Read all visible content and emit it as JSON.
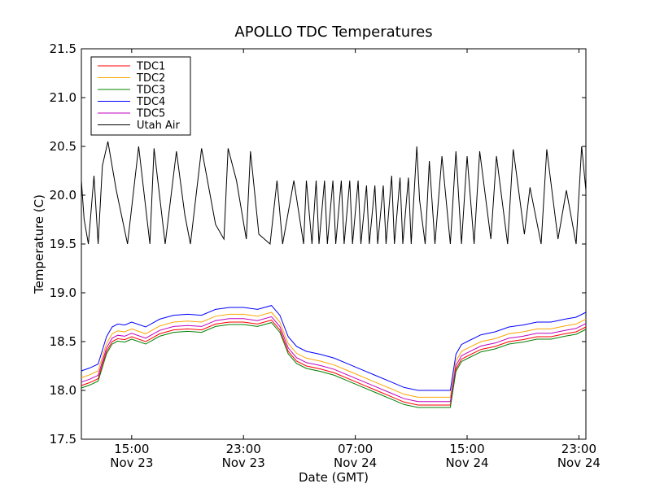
{
  "chart_data": {
    "type": "line",
    "title": "APOLLO TDC Temperatures",
    "xlabel": "Date (GMT)",
    "ylabel": "Temperature (C)",
    "xlim": [
      11.4,
      47.5
    ],
    "ylim": [
      17.5,
      21.5
    ],
    "x_unit": "hours since Nov 23 00:00 GMT",
    "grid": false,
    "legend_position": "top-left",
    "yticks": [
      {
        "value": 17.5,
        "label": "17.5"
      },
      {
        "value": 18.0,
        "label": "18.0"
      },
      {
        "value": 18.5,
        "label": "18.5"
      },
      {
        "value": 19.0,
        "label": "19.0"
      },
      {
        "value": 19.5,
        "label": "19.5"
      },
      {
        "value": 20.0,
        "label": "20.0"
      },
      {
        "value": 20.5,
        "label": "20.5"
      },
      {
        "value": 21.0,
        "label": "21.0"
      },
      {
        "value": 21.5,
        "label": "21.5"
      }
    ],
    "xticks": [
      {
        "value": 15,
        "time": "15:00",
        "date": "Nov 23"
      },
      {
        "value": 23,
        "time": "23:00",
        "date": "Nov 23"
      },
      {
        "value": 31,
        "time": "07:00",
        "date": "Nov 24"
      },
      {
        "value": 39,
        "time": "15:00",
        "date": "Nov 24"
      },
      {
        "value": 47,
        "time": "23:00",
        "date": "Nov 24"
      }
    ],
    "series": [
      {
        "name": "TDC1",
        "color": "#ff0000",
        "offset": 0.0,
        "x": [
          11.4,
          12.0,
          12.6,
          13.2,
          13.6,
          14.0,
          14.5,
          15.0,
          16.0,
          17.0,
          18.0,
          19.0,
          20.0,
          21.0,
          22.0,
          23.0,
          24.0,
          25.0,
          25.6,
          26.2,
          26.8,
          27.5,
          28.5,
          29.5,
          30.5,
          31.5,
          32.5,
          33.5,
          34.5,
          35.5,
          36.5,
          37.2,
          37.8,
          38.2,
          38.6,
          39.0,
          40.0,
          41.0,
          42.0,
          43.0,
          44.0,
          45.0,
          46.0,
          46.8,
          47.5
        ],
        "values": [
          18.05,
          18.08,
          18.12,
          18.4,
          18.5,
          18.53,
          18.52,
          18.55,
          18.5,
          18.58,
          18.62,
          18.63,
          18.62,
          18.68,
          18.7,
          18.7,
          18.68,
          18.72,
          18.62,
          18.4,
          18.3,
          18.25,
          18.22,
          18.18,
          18.12,
          18.06,
          18.0,
          17.94,
          17.88,
          17.85,
          17.85,
          17.85,
          17.85,
          18.22,
          18.32,
          18.35,
          18.42,
          18.45,
          18.5,
          18.52,
          18.55,
          18.55,
          18.58,
          18.6,
          18.65
        ]
      },
      {
        "name": "TDC2",
        "color": "#ffa500",
        "offset": 0.08,
        "x": [
          11.4,
          12.0,
          12.6,
          13.2,
          13.6,
          14.0,
          14.5,
          15.0,
          16.0,
          17.0,
          18.0,
          19.0,
          20.0,
          21.0,
          22.0,
          23.0,
          24.0,
          25.0,
          25.6,
          26.2,
          26.8,
          27.5,
          28.5,
          29.5,
          30.5,
          31.5,
          32.5,
          33.5,
          34.5,
          35.5,
          36.5,
          37.2,
          37.8,
          38.2,
          38.6,
          39.0,
          40.0,
          41.0,
          42.0,
          43.0,
          44.0,
          45.0,
          46.0,
          46.8,
          47.5
        ],
        "values": [
          18.05,
          18.08,
          18.12,
          18.4,
          18.5,
          18.53,
          18.52,
          18.55,
          18.5,
          18.58,
          18.62,
          18.63,
          18.62,
          18.68,
          18.7,
          18.7,
          18.68,
          18.72,
          18.62,
          18.4,
          18.3,
          18.25,
          18.22,
          18.18,
          18.12,
          18.06,
          18.0,
          17.94,
          17.88,
          17.85,
          17.85,
          17.85,
          17.85,
          18.22,
          18.32,
          18.35,
          18.42,
          18.45,
          18.5,
          18.52,
          18.55,
          18.55,
          18.58,
          18.6,
          18.65
        ]
      },
      {
        "name": "TDC3",
        "color": "#008000",
        "offset": -0.025,
        "x": [
          11.4,
          12.0,
          12.6,
          13.2,
          13.6,
          14.0,
          14.5,
          15.0,
          16.0,
          17.0,
          18.0,
          19.0,
          20.0,
          21.0,
          22.0,
          23.0,
          24.0,
          25.0,
          25.6,
          26.2,
          26.8,
          27.5,
          28.5,
          29.5,
          30.5,
          31.5,
          32.5,
          33.5,
          34.5,
          35.5,
          36.5,
          37.2,
          37.8,
          38.2,
          38.6,
          39.0,
          40.0,
          41.0,
          42.0,
          43.0,
          44.0,
          45.0,
          46.0,
          46.8,
          47.5
        ],
        "values": [
          18.05,
          18.08,
          18.12,
          18.4,
          18.5,
          18.53,
          18.52,
          18.55,
          18.5,
          18.58,
          18.62,
          18.63,
          18.62,
          18.68,
          18.7,
          18.7,
          18.68,
          18.72,
          18.62,
          18.4,
          18.3,
          18.25,
          18.22,
          18.18,
          18.12,
          18.06,
          18.0,
          17.94,
          17.88,
          17.85,
          17.85,
          17.85,
          17.85,
          18.22,
          18.32,
          18.35,
          18.42,
          18.45,
          18.5,
          18.52,
          18.55,
          18.55,
          18.58,
          18.6,
          18.65
        ]
      },
      {
        "name": "TDC4",
        "color": "#0000ff",
        "offset": 0.15,
        "x": [
          11.4,
          12.0,
          12.6,
          13.2,
          13.6,
          14.0,
          14.5,
          15.0,
          16.0,
          17.0,
          18.0,
          19.0,
          20.0,
          21.0,
          22.0,
          23.0,
          24.0,
          25.0,
          25.6,
          26.2,
          26.8,
          27.5,
          28.5,
          29.5,
          30.5,
          31.5,
          32.5,
          33.5,
          34.5,
          35.5,
          36.5,
          37.2,
          37.8,
          38.2,
          38.6,
          39.0,
          40.0,
          41.0,
          42.0,
          43.0,
          44.0,
          45.0,
          46.0,
          46.8,
          47.5
        ],
        "values": [
          18.05,
          18.08,
          18.12,
          18.4,
          18.5,
          18.53,
          18.52,
          18.55,
          18.5,
          18.58,
          18.62,
          18.63,
          18.62,
          18.68,
          18.7,
          18.7,
          18.68,
          18.72,
          18.62,
          18.4,
          18.3,
          18.25,
          18.22,
          18.18,
          18.12,
          18.06,
          18.0,
          17.94,
          17.88,
          17.85,
          17.85,
          17.85,
          17.85,
          18.22,
          18.32,
          18.35,
          18.42,
          18.45,
          18.5,
          18.52,
          18.55,
          18.55,
          18.58,
          18.6,
          18.65
        ]
      },
      {
        "name": "TDC5",
        "color": "#bf00bf",
        "offset": 0.035,
        "x": [
          11.4,
          12.0,
          12.6,
          13.2,
          13.6,
          14.0,
          14.5,
          15.0,
          16.0,
          17.0,
          18.0,
          19.0,
          20.0,
          21.0,
          22.0,
          23.0,
          24.0,
          25.0,
          25.6,
          26.2,
          26.8,
          27.5,
          28.5,
          29.5,
          30.5,
          31.5,
          32.5,
          33.5,
          34.5,
          35.5,
          36.5,
          37.2,
          37.8,
          38.2,
          38.6,
          39.0,
          40.0,
          41.0,
          42.0,
          43.0,
          44.0,
          45.0,
          46.0,
          46.8,
          47.5
        ],
        "values": [
          18.05,
          18.08,
          18.12,
          18.4,
          18.5,
          18.53,
          18.52,
          18.55,
          18.5,
          18.58,
          18.62,
          18.63,
          18.62,
          18.68,
          18.7,
          18.7,
          18.68,
          18.72,
          18.62,
          18.4,
          18.3,
          18.25,
          18.22,
          18.18,
          18.12,
          18.06,
          18.0,
          17.94,
          17.88,
          17.85,
          17.85,
          17.85,
          17.85,
          18.22,
          18.32,
          18.35,
          18.42,
          18.45,
          18.5,
          18.52,
          18.55,
          18.55,
          18.58,
          18.6,
          18.65
        ]
      },
      {
        "name": "Utah Air",
        "color": "#000000",
        "offset": 0.0,
        "x": [
          11.4,
          11.6,
          11.9,
          12.3,
          12.6,
          12.9,
          13.3,
          13.9,
          14.7,
          15.5,
          16.3,
          16.6,
          17.4,
          18.2,
          18.8,
          19.2,
          20.0,
          21.0,
          21.6,
          21.9,
          22.5,
          23.2,
          23.5,
          24.1,
          24.9,
          25.4,
          25.8,
          26.6,
          27.3,
          27.5,
          27.9,
          28.2,
          28.4,
          28.8,
          29.0,
          29.4,
          29.6,
          30.0,
          30.2,
          30.6,
          30.8,
          31.2,
          31.4,
          31.8,
          32.0,
          32.4,
          32.6,
          33.0,
          33.2,
          33.6,
          33.8,
          34.2,
          34.4,
          34.8,
          35.0,
          35.4,
          35.6,
          36.0,
          36.3,
          36.7,
          37.2,
          37.8,
          38.2,
          38.6,
          39.0,
          39.5,
          39.9,
          40.7,
          41.1,
          41.9,
          42.3,
          43.1,
          43.5,
          44.3,
          44.7,
          45.5,
          46.1,
          46.8,
          47.2,
          47.5
        ],
        "values": [
          20.15,
          19.75,
          19.5,
          20.2,
          19.5,
          20.3,
          20.55,
          20.05,
          19.5,
          20.5,
          19.5,
          20.48,
          19.5,
          20.45,
          19.8,
          19.5,
          20.48,
          19.7,
          19.55,
          20.48,
          20.15,
          19.55,
          20.45,
          19.6,
          19.5,
          20.15,
          19.5,
          20.15,
          19.5,
          20.15,
          19.5,
          20.15,
          19.5,
          20.15,
          19.5,
          20.15,
          19.5,
          20.15,
          19.5,
          20.15,
          19.5,
          20.15,
          19.5,
          20.1,
          19.5,
          20.1,
          19.5,
          20.1,
          19.5,
          20.2,
          19.5,
          20.18,
          19.5,
          20.18,
          19.5,
          20.5,
          19.95,
          19.5,
          20.35,
          19.5,
          20.4,
          19.5,
          20.45,
          19.5,
          20.4,
          19.5,
          20.45,
          19.55,
          20.4,
          19.5,
          20.47,
          19.6,
          20.08,
          19.5,
          20.47,
          19.55,
          20.05,
          19.5,
          20.5,
          20.05
        ]
      }
    ]
  }
}
